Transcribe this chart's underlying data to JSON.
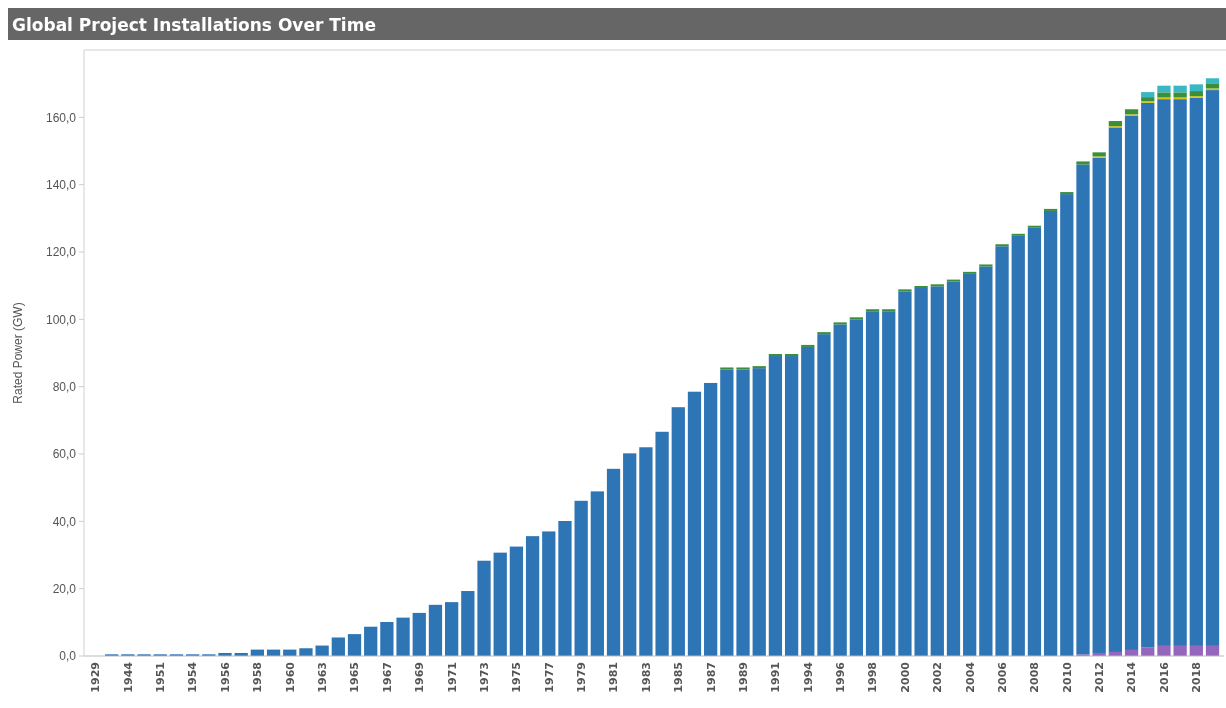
{
  "chart_data": {
    "type": "bar",
    "title": "Global Project Installations Over Time",
    "ylabel": "Rated Power (GW)",
    "stacked": true,
    "categories": [
      "1929",
      null,
      "1944",
      null,
      "1951",
      null,
      "1954",
      null,
      "1956",
      null,
      "1958",
      null,
      "1960",
      null,
      "1963",
      null,
      "1965",
      null,
      "1967",
      null,
      "1969",
      null,
      "1971",
      null,
      "1973",
      null,
      "1975",
      null,
      "1977",
      null,
      "1979",
      null,
      "1981",
      null,
      "1983",
      null,
      "1985",
      null,
      "1987",
      null,
      "1989",
      null,
      "1991",
      null,
      "1994",
      null,
      "1996",
      null,
      "1998",
      null,
      "2000",
      null,
      "2002",
      null,
      "2004",
      null,
      "2006",
      null,
      "2008",
      null,
      "2010",
      null,
      "2012",
      null,
      "2014",
      null,
      "2016",
      null,
      "2018",
      null
    ],
    "series": [
      {
        "color": "#9467bd",
        "values": [
          0,
          0,
          0,
          0,
          0,
          0,
          0,
          0,
          0,
          0,
          0,
          0,
          0,
          0,
          0,
          0,
          0,
          0,
          0,
          0,
          0,
          0,
          0,
          0,
          0,
          0,
          0,
          0,
          0,
          0,
          0,
          0,
          0,
          0,
          0,
          0,
          0,
          0,
          0,
          0,
          0,
          0,
          0,
          0,
          0,
          0,
          0,
          0,
          0,
          0,
          0,
          0,
          0,
          0,
          0,
          0,
          0,
          0,
          0,
          0,
          0,
          0.5,
          0.9,
          1.2,
          1.8,
          2.6,
          3.0,
          3.0,
          3.0,
          3.0
        ]
      },
      {
        "color": "#2e75b6",
        "values": [
          null,
          0.5,
          0.5,
          0.5,
          0.5,
          0.5,
          0.5,
          0.5,
          0.9,
          0.9,
          1.9,
          1.9,
          1.9,
          2.3,
          3.1,
          5.5,
          6.5,
          8.7,
          10.1,
          11.4,
          12.8,
          15.2,
          16.0,
          19.3,
          28.3,
          30.7,
          32.5,
          35.6,
          37.0,
          40.1,
          46.1,
          48.9,
          55.6,
          60.2,
          62.0,
          66.6,
          73.9,
          78.5,
          81.1,
          85.1,
          85.1,
          85.5,
          89.1,
          89.1,
          91.8,
          95.6,
          98.5,
          100.0,
          102.4,
          102.4,
          108.3,
          109.3,
          109.8,
          111.2,
          113.5,
          115.7,
          121.7,
          124.8,
          127.2,
          132.2,
          137.2,
          145.5,
          147.1,
          155.8,
          158.6,
          161.7,
          162.4,
          162.4,
          162.8,
          165.1
        ]
      },
      {
        "color": "#d4c21a",
        "values": [
          0,
          0,
          0,
          0,
          0,
          0,
          0,
          0,
          0,
          0,
          0,
          0,
          0,
          0,
          0,
          0,
          0,
          0,
          0,
          0,
          0,
          0,
          0,
          0,
          0,
          0,
          0,
          0,
          0,
          0,
          0,
          0,
          0,
          0,
          0,
          0,
          0,
          0,
          0,
          0,
          0,
          0,
          0,
          0,
          0,
          0,
          0,
          0,
          0,
          0,
          0,
          0,
          0,
          0,
          0,
          0,
          0,
          0,
          0,
          0,
          0,
          0,
          0.4,
          0.4,
          0.5,
          0.5,
          0.5,
          0.5,
          0.5,
          0.5
        ]
      },
      {
        "color": "#3a8f3a",
        "values": [
          0,
          0,
          0,
          0,
          0,
          0,
          0,
          0,
          0,
          0,
          0,
          0,
          0,
          0,
          0,
          0,
          0,
          0,
          0,
          0,
          0,
          0,
          0,
          0,
          0,
          0,
          0,
          0,
          0,
          0,
          0,
          0,
          0,
          0,
          0,
          0,
          0,
          0,
          0,
          0.6,
          0.6,
          0.6,
          0.6,
          0.6,
          0.6,
          0.6,
          0.6,
          0.6,
          0.6,
          0.6,
          0.6,
          0.6,
          0.6,
          0.6,
          0.6,
          0.6,
          0.6,
          0.6,
          0.6,
          0.6,
          0.6,
          0.9,
          1.2,
          1.5,
          1.5,
          1.2,
          1.5,
          1.5,
          1.5,
          1.5
        ]
      },
      {
        "color": "#3bb7c4",
        "values": [
          0,
          0,
          0,
          0,
          0,
          0,
          0,
          0,
          0,
          0,
          0,
          0,
          0,
          0,
          0,
          0,
          0,
          0,
          0,
          0,
          0,
          0,
          0,
          0,
          0,
          0,
          0,
          0,
          0,
          0,
          0,
          0,
          0,
          0,
          0,
          0,
          0,
          0,
          0,
          0,
          0,
          0,
          0,
          0,
          0,
          0,
          0,
          0,
          0,
          0,
          0,
          0,
          0,
          0,
          0,
          0,
          0,
          0,
          0,
          0,
          0,
          0,
          0,
          0,
          0,
          1.5,
          2.0,
          2.0,
          2.0,
          1.5
        ]
      }
    ],
    "ylim": [
      0,
      180
    ],
    "yticks": [
      {
        "value": 0,
        "label": "0,0"
      },
      {
        "value": 20,
        "label": "20,0"
      },
      {
        "value": 40,
        "label": "40,0"
      },
      {
        "value": 60,
        "label": "60,0"
      },
      {
        "value": 80,
        "label": "80,0"
      },
      {
        "value": 100,
        "label": "100,0"
      },
      {
        "value": 120,
        "label": "120,0"
      },
      {
        "value": 140,
        "label": "140,0"
      },
      {
        "value": 160,
        "label": "160,0"
      }
    ]
  }
}
